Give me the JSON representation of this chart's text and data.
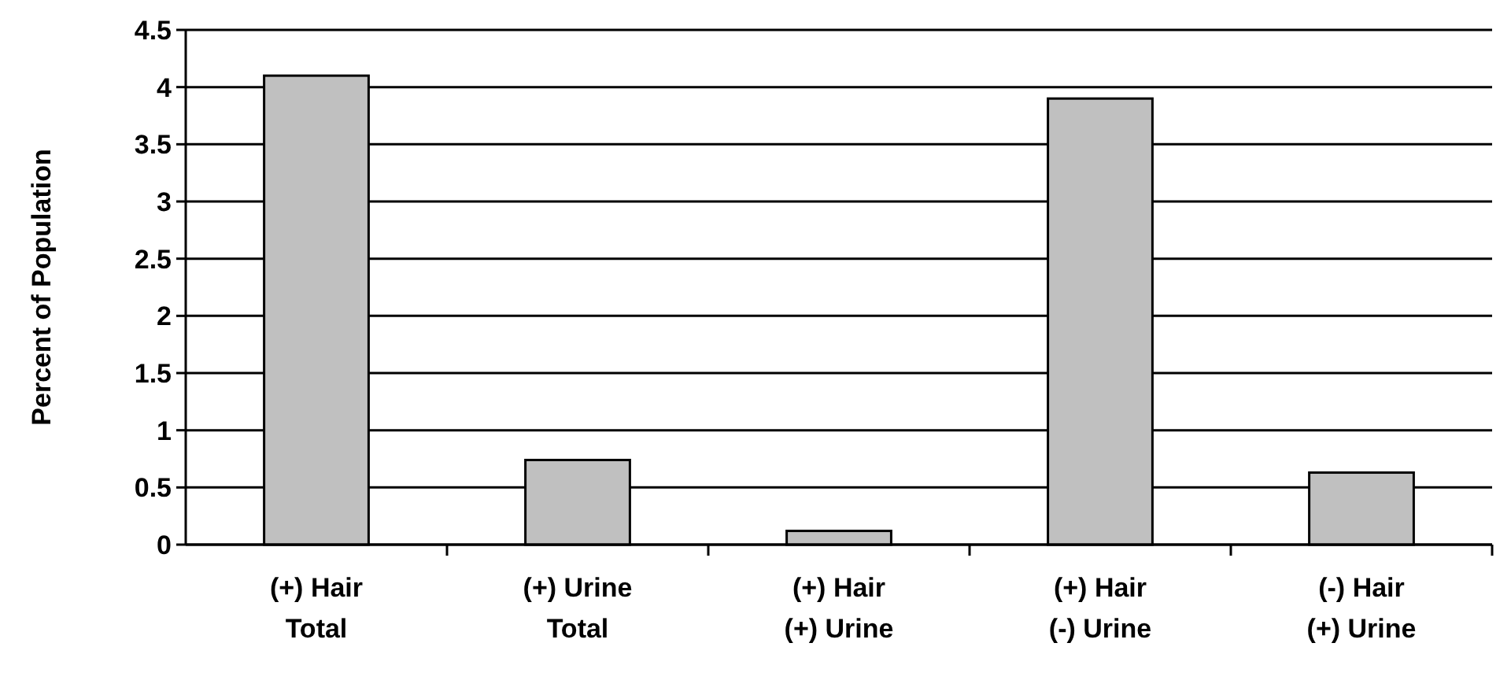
{
  "chart_data": {
    "type": "bar",
    "ylabel": "Percent of Population",
    "categories": [
      "(+) Hair\nTotal",
      "(+) Urine\nTotal",
      "(+) Hair\n(+) Urine",
      "(+) Hair\n(-) Urine",
      "(-) Hair\n(+) Urine"
    ],
    "values": [
      4.1,
      0.74,
      0.12,
      3.9,
      0.63
    ],
    "color": "#c0c0c0",
    "ylim": [
      0,
      4.5
    ],
    "yticks": [
      0,
      0.5,
      1,
      1.5,
      2,
      2.5,
      3,
      3.5,
      4,
      4.5
    ],
    "grid": "y"
  }
}
